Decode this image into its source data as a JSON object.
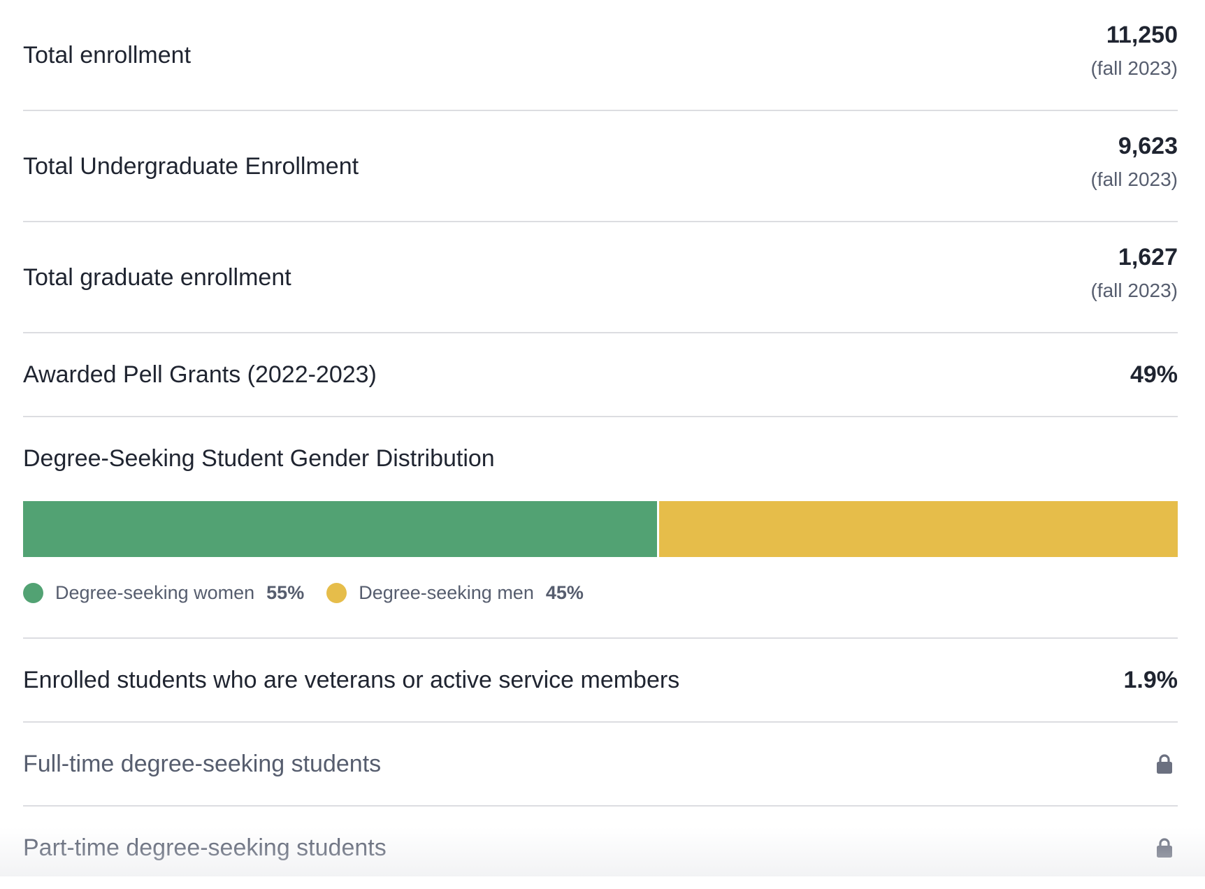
{
  "stats": [
    {
      "label": "Total enrollment",
      "value": "11,250",
      "sub": "(fall 2023)"
    },
    {
      "label": "Total Undergraduate Enrollment",
      "value": "9,623",
      "sub": "(fall 2023)"
    },
    {
      "label": "Total graduate enrollment",
      "value": "1,627",
      "sub": "(fall 2023)"
    },
    {
      "label": "Awarded Pell Grants (2022-2023)",
      "value": "49%"
    }
  ],
  "gender": {
    "title": "Degree-Seeking Student Gender Distribution",
    "segments": [
      {
        "label": "Degree-seeking women",
        "pct_text": "55%",
        "percent": 55,
        "color": "#52a273"
      },
      {
        "label": "Degree-seeking men",
        "pct_text": "45%",
        "percent": 45,
        "color": "#e6bd4a"
      }
    ]
  },
  "veterans": {
    "label": "Enrolled students who are veterans or active service members",
    "value": "1.9%"
  },
  "locked": [
    {
      "label": "Full-time degree-seeking students",
      "icon": "lock-icon"
    },
    {
      "label": "Part-time degree-seeking students",
      "icon": "lock-icon"
    }
  ]
}
